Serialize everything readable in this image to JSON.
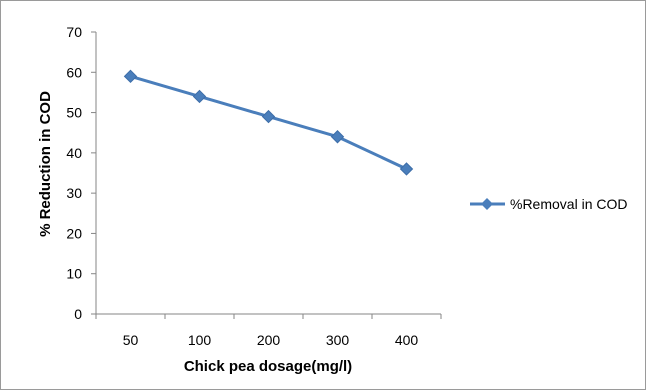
{
  "chart_data": {
    "type": "line",
    "categories": [
      "50",
      "100",
      "200",
      "300",
      "400"
    ],
    "series": [
      {
        "name": "%Removal in COD",
        "values": [
          59,
          54,
          49,
          44,
          36
        ]
      }
    ],
    "title": "",
    "xlabel": "Chick pea dosage(mg/l)",
    "ylabel": "% Reduction in COD",
    "ylim": [
      0,
      70
    ],
    "yticks": [
      0,
      10,
      20,
      30,
      40,
      50,
      60,
      70
    ],
    "grid": false,
    "legend": "right",
    "colors": {
      "series": "#4a7ebb",
      "axis": "#868686",
      "frame": "#9a9a9a"
    },
    "marker": "diamond"
  }
}
